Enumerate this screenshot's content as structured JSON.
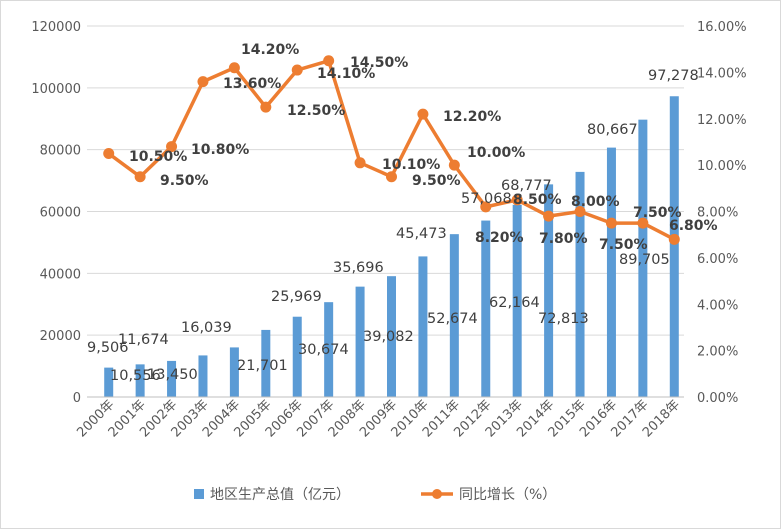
{
  "chart_data": {
    "type": "bar+line",
    "categories": [
      "2000年",
      "2001年",
      "2002年",
      "2003年",
      "2004年",
      "2005年",
      "2006年",
      "2007年",
      "2008年",
      "2009年",
      "2010年",
      "2011年",
      "2012年",
      "2013年",
      "2014年",
      "2015年",
      "2016年",
      "2017年",
      "2018年"
    ],
    "series": [
      {
        "name": "地区生产总值（亿元）",
        "type": "bar",
        "axis": "left",
        "color": "#5B9BD5",
        "values": [
          9506,
          10556,
          11674,
          13450,
          16039,
          21701,
          25969,
          30674,
          35696,
          39082,
          45473,
          52674,
          57068,
          62164,
          68777,
          72813,
          80667,
          89705,
          97278
        ],
        "labels": [
          "9,506",
          "10,556",
          "11,674",
          "13,450",
          "16,039",
          "21,701",
          "25,969",
          "30,674",
          "35,696",
          "39,082",
          "45,473",
          "52,674",
          "57,068",
          "62,164",
          "68,777",
          "72,813",
          "80,667",
          "89,705",
          "97,278"
        ]
      },
      {
        "name": "同比增长（%）",
        "type": "line",
        "axis": "right",
        "color": "#ED7D31",
        "values": [
          10.5,
          9.5,
          10.8,
          13.6,
          14.2,
          12.5,
          14.1,
          14.5,
          10.1,
          9.5,
          12.2,
          10.0,
          8.2,
          8.5,
          7.8,
          8.0,
          7.5,
          7.5,
          6.8
        ],
        "labels": [
          "10.50%",
          "9.50%",
          "10.80%",
          "13.60%",
          "14.20%",
          "12.50%",
          "14.10%",
          "14.50%",
          "10.10%",
          "9.50%",
          "12.20%",
          "10.00%",
          "8.20%",
          "8.50%",
          "7.80%",
          "8.00%",
          "7.50%",
          "7.50%",
          "6.80%"
        ]
      }
    ],
    "y_left": {
      "min": 0,
      "max": 120000,
      "ticks": [
        "0",
        "20000",
        "40000",
        "60000",
        "80000",
        "100000",
        "120000"
      ]
    },
    "y_right": {
      "min": 0,
      "max": 16,
      "ticks": [
        "0.00%",
        "2.00%",
        "4.00%",
        "6.00%",
        "8.00%",
        "10.00%",
        "12.00%",
        "14.00%",
        "16.00%"
      ]
    },
    "grid": true,
    "legend_position": "bottom",
    "legend": [
      "地区生产总值（亿元）",
      "同比增长（%）"
    ]
  }
}
